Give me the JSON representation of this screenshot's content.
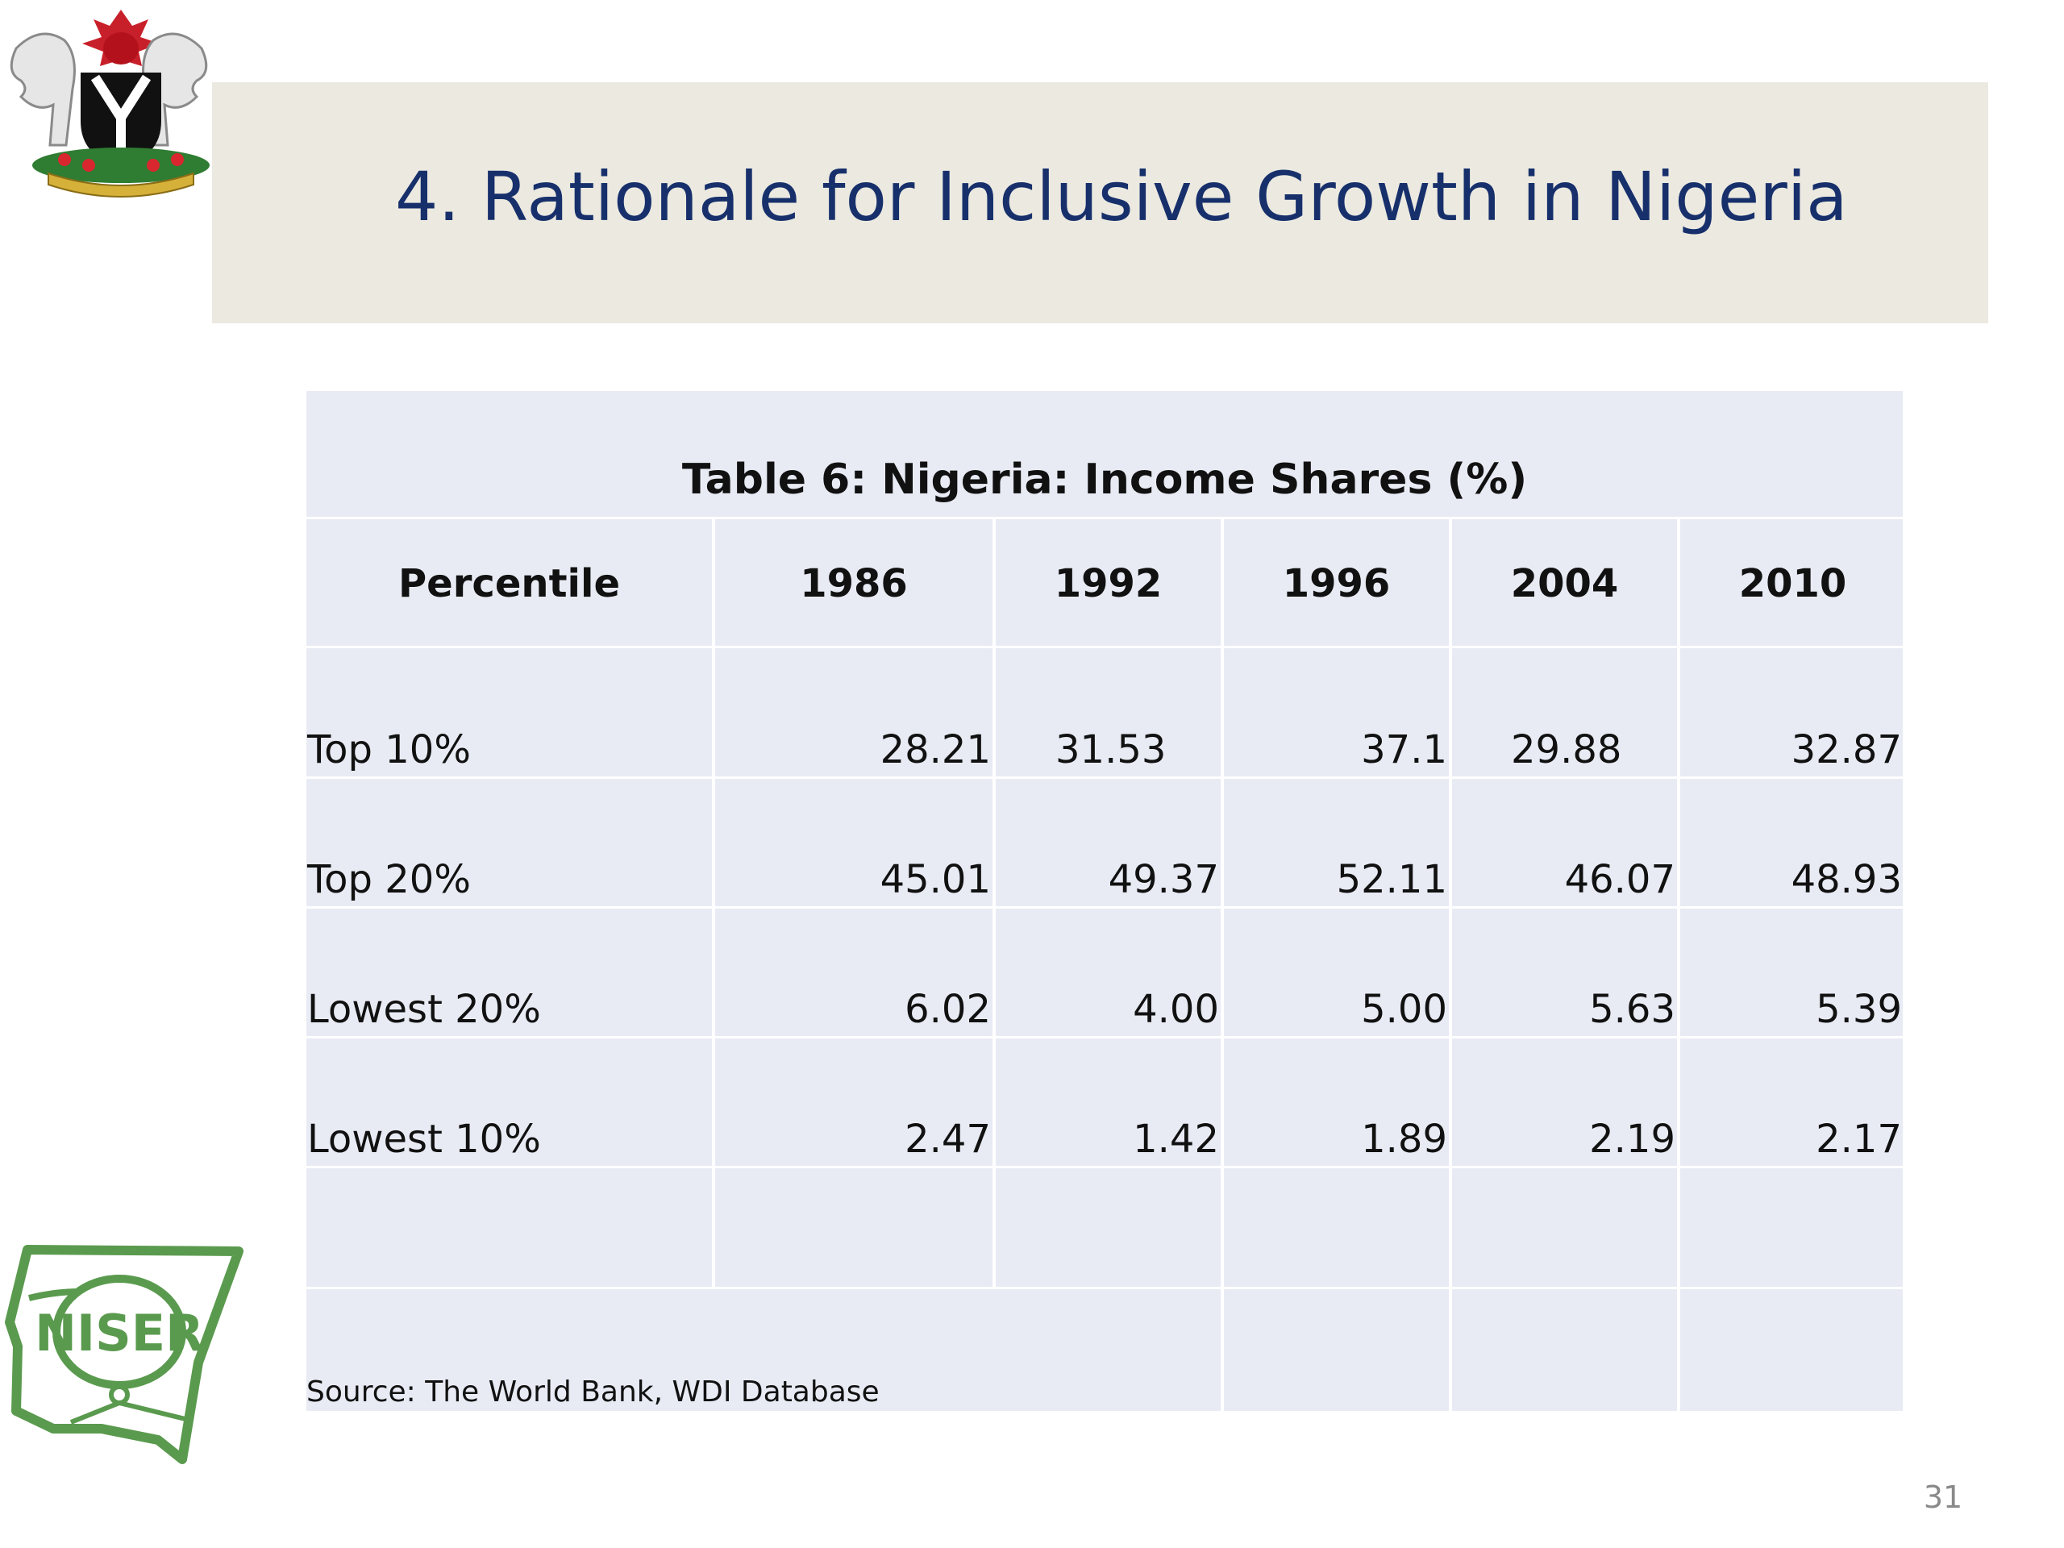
{
  "slide": {
    "title": "4. Rationale for Inclusive Growth in Nigeria",
    "page_number": "31"
  },
  "logos": {
    "coat_of_arms": "nigeria-coat-of-arms-icon",
    "niser": "NISER"
  },
  "table": {
    "caption": "Table 6: Nigeria: Income Shares (%)",
    "headers": [
      "Percentile",
      "1986",
      "1992",
      "1996",
      "2004",
      "2010"
    ],
    "rows": [
      {
        "label": "Top 10%",
        "values": [
          "28.21",
          "31.53",
          "37.1",
          "29.88",
          "32.87"
        ]
      },
      {
        "label": "Top 20%",
        "values": [
          "45.01",
          "49.37",
          "52.11",
          "46.07",
          "48.93"
        ]
      },
      {
        "label": "Lowest 20%",
        "values": [
          "6.02",
          "4.00",
          "5.00",
          "5.63",
          "5.39"
        ]
      },
      {
        "label": "Lowest 10%",
        "values": [
          "2.47",
          "1.42",
          "1.89",
          "2.19",
          "2.17"
        ]
      }
    ],
    "source": "Source: The World Bank, WDI Database"
  },
  "colors": {
    "title": "#17306b",
    "band": "#ebe9e0",
    "table_bg": "#e8ebf4",
    "niser_green": "#5a9a4e"
  }
}
